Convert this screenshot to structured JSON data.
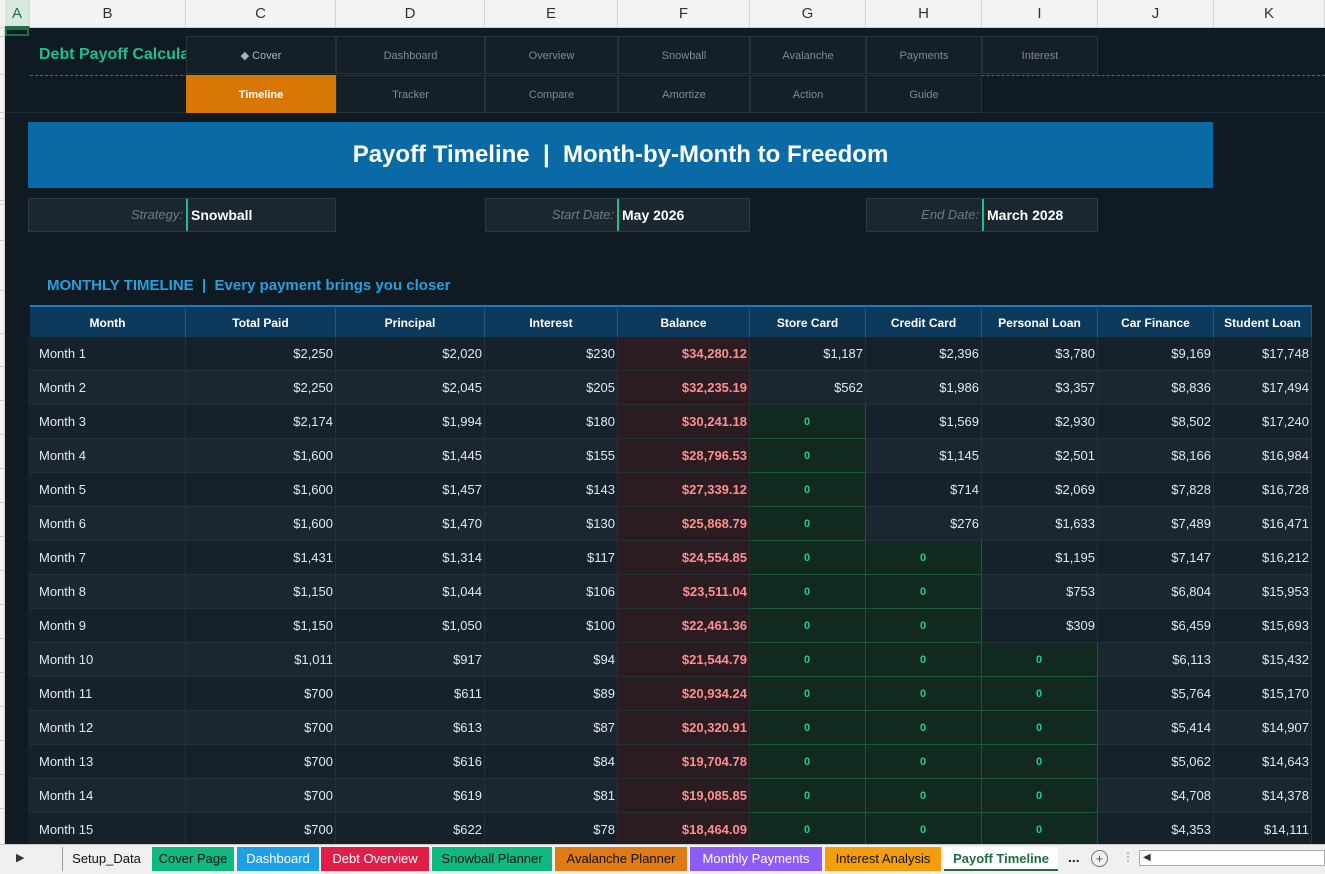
{
  "app": {
    "title": "Debt Payoff Calculator"
  },
  "column_headers": [
    "A",
    "B",
    "C",
    "D",
    "E",
    "F",
    "G",
    "H",
    "I",
    "J",
    "K"
  ],
  "nav": {
    "row1": [
      "◆ Cover",
      "Dashboard",
      "Overview",
      "Snowball",
      "Avalanche",
      "Payments",
      "Interest"
    ],
    "row2": [
      "Timeline",
      "Tracker",
      "Compare",
      "Amortize",
      "Action",
      "Guide"
    ],
    "active": "Timeline"
  },
  "banner": {
    "title": "Payoff Timeline  |  Month-by-Month to Freedom"
  },
  "info": {
    "strategy_label": "Strategy:",
    "strategy_value": "Snowball",
    "start_label": "Start Date:",
    "start_value": "May 2026",
    "end_label": "End Date:",
    "end_value": "March 2028"
  },
  "section": {
    "title": "MONTHLY TIMELINE  |  Every payment brings you closer"
  },
  "table": {
    "headers": [
      "Month",
      "Total Paid",
      "Principal",
      "Interest",
      "Balance",
      "Store Card",
      "Credit Card",
      "Personal Loan",
      "Car Finance",
      "Student Loan"
    ],
    "rows": [
      [
        "Month 1",
        "$2,250",
        "$2,020",
        "$230",
        "$34,280.12",
        "$1,187",
        "$2,396",
        "$3,780",
        "$9,169",
        "$17,748"
      ],
      [
        "Month 2",
        "$2,250",
        "$2,045",
        "$205",
        "$32,235.19",
        "$562",
        "$1,986",
        "$3,357",
        "$8,836",
        "$17,494"
      ],
      [
        "Month 3",
        "$2,174",
        "$1,994",
        "$180",
        "$30,241.18",
        "0",
        "$1,569",
        "$2,930",
        "$8,502",
        "$17,240"
      ],
      [
        "Month 4",
        "$1,600",
        "$1,445",
        "$155",
        "$28,796.53",
        "0",
        "$1,145",
        "$2,501",
        "$8,166",
        "$16,984"
      ],
      [
        "Month 5",
        "$1,600",
        "$1,457",
        "$143",
        "$27,339.12",
        "0",
        "$714",
        "$2,069",
        "$7,828",
        "$16,728"
      ],
      [
        "Month 6",
        "$1,600",
        "$1,470",
        "$130",
        "$25,868.79",
        "0",
        "$276",
        "$1,633",
        "$7,489",
        "$16,471"
      ],
      [
        "Month 7",
        "$1,431",
        "$1,314",
        "$117",
        "$24,554.85",
        "0",
        "0",
        "$1,195",
        "$7,147",
        "$16,212"
      ],
      [
        "Month 8",
        "$1,150",
        "$1,044",
        "$106",
        "$23,511.04",
        "0",
        "0",
        "$753",
        "$6,804",
        "$15,953"
      ],
      [
        "Month 9",
        "$1,150",
        "$1,050",
        "$100",
        "$22,461.36",
        "0",
        "0",
        "$309",
        "$6,459",
        "$15,693"
      ],
      [
        "Month 10",
        "$1,011",
        "$917",
        "$94",
        "$21,544.79",
        "0",
        "0",
        "0",
        "$6,113",
        "$15,432"
      ],
      [
        "Month 11",
        "$700",
        "$611",
        "$89",
        "$20,934.24",
        "0",
        "0",
        "0",
        "$5,764",
        "$15,170"
      ],
      [
        "Month 12",
        "$700",
        "$613",
        "$87",
        "$20,320.91",
        "0",
        "0",
        "0",
        "$5,414",
        "$14,907"
      ],
      [
        "Month 13",
        "$700",
        "$616",
        "$84",
        "$19,704.78",
        "0",
        "0",
        "0",
        "$5,062",
        "$14,643"
      ],
      [
        "Month 14",
        "$700",
        "$619",
        "$81",
        "$19,085.85",
        "0",
        "0",
        "0",
        "$4,708",
        "$14,378"
      ],
      [
        "Month 15",
        "$700",
        "$622",
        "$78",
        "$18,464.09",
        "0",
        "0",
        "0",
        "$4,353",
        "$14,111"
      ]
    ]
  },
  "sheet_tabs": [
    {
      "label": "Setup_Data",
      "color": "#f0f0f0"
    },
    {
      "label": "Cover Page",
      "color": "#10b981"
    },
    {
      "label": "Dashboard",
      "color": "#1ea0e6"
    },
    {
      "label": "Debt Overview",
      "color": "#e11d48"
    },
    {
      "label": "Snowball Planner",
      "color": "#10b981"
    },
    {
      "label": "Avalanche Planner",
      "color": "#e07b14"
    },
    {
      "label": "Monthly Payments",
      "color": "#8b5cf6"
    },
    {
      "label": "Interest Analysis",
      "color": "#f59e0b"
    },
    {
      "label": "Payoff Timeline",
      "color": "#ffffff"
    }
  ],
  "sheet_tabs_more": "...",
  "colors": {
    "accent_green": "#1fbf8f",
    "banner_blue": "#0a6aa6",
    "active_orange": "#d97706",
    "balance_red": "#ff8f8f"
  }
}
